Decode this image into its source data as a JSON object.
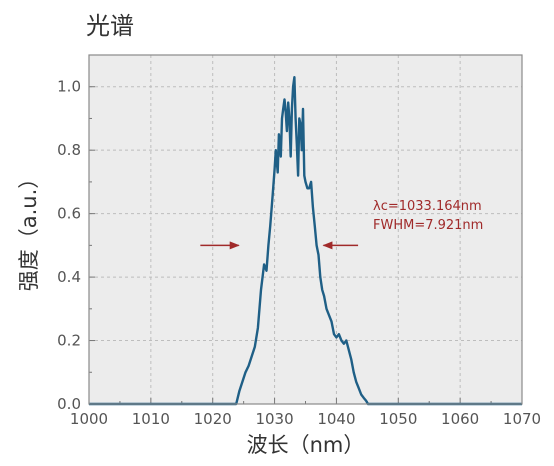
{
  "chart_data": {
    "type": "line",
    "title": "光谱",
    "xlabel": "波长（nm）",
    "ylabel": "强度（a.u.）",
    "xlim": [
      1000,
      1070
    ],
    "ylim": [
      0,
      1.1
    ],
    "xticks": [
      1000,
      1010,
      1020,
      1030,
      1040,
      1050,
      1060,
      1070
    ],
    "yticks": [
      0.0,
      0.2,
      0.4,
      0.6,
      0.8,
      1.0
    ],
    "ytick_labels": [
      "0.0",
      "0.2",
      "0.4",
      "0.6",
      "0.8",
      "1.0"
    ],
    "grid": true,
    "colors": {
      "line": "#1f5f86",
      "plot_bg": "#ececec",
      "grid": "#bdbdbd",
      "annotation": "#a02a2a"
    },
    "series": [
      {
        "x": [
          1000,
          1023.8,
          1024.3,
          1024.8,
          1025.3,
          1025.8,
          1026.3,
          1026.8,
          1027.3,
          1027.8,
          1028.3,
          1028.7,
          1029.0,
          1029.3,
          1029.7,
          1030.0,
          1030.2,
          1030.5,
          1030.7,
          1031.0,
          1031.2,
          1031.4,
          1031.6,
          1031.8,
          1032.0,
          1032.2,
          1032.4,
          1032.6,
          1032.8,
          1033.0,
          1033.2,
          1033.4,
          1033.6,
          1033.8,
          1034.0,
          1034.2,
          1034.4,
          1034.6,
          1034.8,
          1035.0,
          1035.3,
          1035.6,
          1035.9,
          1036.2,
          1036.5,
          1036.8,
          1037.1,
          1037.4,
          1037.7,
          1038.0,
          1038.4,
          1038.8,
          1039.2,
          1039.6,
          1040.0,
          1040.4,
          1040.8,
          1041.2,
          1041.6,
          1042.0,
          1042.4,
          1042.8,
          1043.2,
          1043.6,
          1044.0,
          1044.4,
          1044.8,
          1045.1,
          1070
        ],
        "y": [
          0.0,
          0.0,
          0.04,
          0.07,
          0.1,
          0.12,
          0.15,
          0.18,
          0.24,
          0.36,
          0.44,
          0.42,
          0.5,
          0.56,
          0.66,
          0.74,
          0.8,
          0.73,
          0.85,
          0.78,
          0.9,
          0.93,
          0.96,
          0.92,
          0.86,
          0.95,
          0.9,
          0.78,
          0.93,
          1.0,
          1.03,
          0.9,
          0.82,
          0.72,
          0.9,
          0.88,
          0.8,
          0.93,
          0.72,
          0.7,
          0.68,
          0.68,
          0.7,
          0.62,
          0.56,
          0.5,
          0.47,
          0.4,
          0.36,
          0.34,
          0.3,
          0.28,
          0.26,
          0.22,
          0.21,
          0.22,
          0.2,
          0.19,
          0.2,
          0.17,
          0.14,
          0.1,
          0.07,
          0.05,
          0.03,
          0.02,
          0.01,
          0.0,
          0.0
        ]
      }
    ],
    "annotations": [
      "λc=1033.164nm",
      "FWHM=7.921nm"
    ],
    "arrows": [
      {
        "from": [
          1018,
          0.5
        ],
        "to": [
          1024.2,
          0.5
        ]
      },
      {
        "from": [
          1043.5,
          0.5
        ],
        "to": [
          1037.9,
          0.5
        ]
      }
    ]
  }
}
